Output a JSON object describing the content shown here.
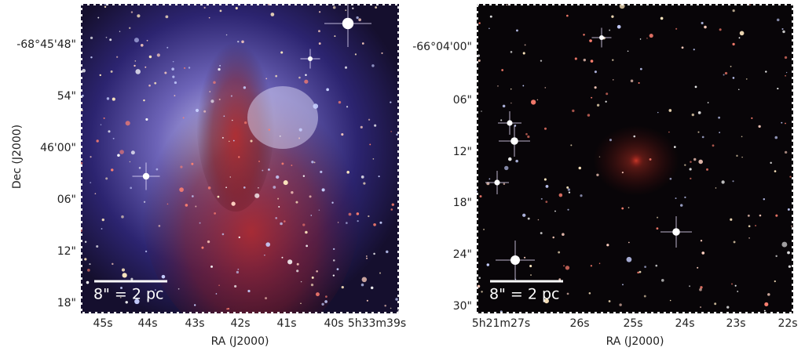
{
  "panels": [
    {
      "y_axis_label": "Dec (J2000)",
      "x_axis_label": "RA (J2000)",
      "y_tick_labels": [
        "-68°45'48\"",
        "54\"",
        "46'00\"",
        "06\"",
        "12\"",
        "18\""
      ],
      "x_tick_labels": [
        "45s",
        "44s",
        "43s",
        "42s",
        "41s",
        "40s",
        "5h33m39s"
      ],
      "scale_bar_label": "8\" = 2 pc"
    },
    {
      "x_axis_label": "RA (J2000)",
      "y_tick_labels": [
        "-66°04'00\"",
        "06\"",
        "12\"",
        "18\"",
        "24\"",
        "30\""
      ],
      "x_tick_labels": [
        "5h21m27s",
        "26s",
        "25s",
        "24s",
        "23s",
        "22s"
      ],
      "scale_bar_label": "8\" = 2 pc"
    }
  ]
}
